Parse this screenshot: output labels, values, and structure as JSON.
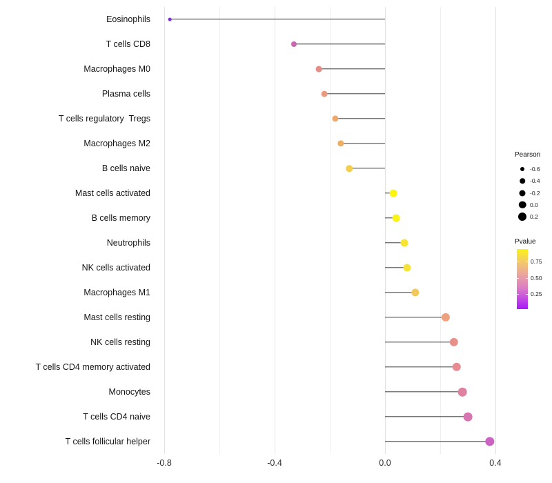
{
  "chart_data": {
    "type": "scatter",
    "variant": "lollipop",
    "title": "",
    "xlabel": "",
    "ylabel": "",
    "grid": "vertical-only",
    "xlim": [
      -0.825,
      0.43
    ],
    "x_ticks": {
      "labels": [
        "-0.8",
        "-0.4",
        "0.0",
        "0.4"
      ],
      "values": [
        -0.8,
        -0.4,
        0.0,
        0.4
      ]
    },
    "x_minor_gridlines": [
      -0.6,
      -0.2,
      0.2
    ],
    "baseline_x": 0.0,
    "points": [
      {
        "label": "Eosinophils",
        "pearson": -0.78,
        "color": "#7E2FD1"
      },
      {
        "label": "T cells CD8",
        "pearson": -0.33,
        "color": "#C767B2"
      },
      {
        "label": "Macrophages M0",
        "pearson": -0.24,
        "color": "#E28E84"
      },
      {
        "label": "Plasma cells",
        "pearson": -0.22,
        "color": "#EA9A7F"
      },
      {
        "label": "T cells regulatory  Tregs",
        "pearson": -0.18,
        "color": "#EDAA6F"
      },
      {
        "label": "Macrophages M2",
        "pearson": -0.16,
        "color": "#EFAE62"
      },
      {
        "label": "B cells naive",
        "pearson": -0.13,
        "color": "#F3CF51"
      },
      {
        "label": "Mast cells activated",
        "pearson": 0.03,
        "color": "#FAF60D"
      },
      {
        "label": "B cells memory",
        "pearson": 0.04,
        "color": "#FAF318"
      },
      {
        "label": "Neutrophils",
        "pearson": 0.07,
        "color": "#F8E531"
      },
      {
        "label": "NK cells activated",
        "pearson": 0.08,
        "color": "#F7E337"
      },
      {
        "label": "Macrophages M1",
        "pearson": 0.11,
        "color": "#F0C95A"
      },
      {
        "label": "Mast cells resting",
        "pearson": 0.22,
        "color": "#EDA17E"
      },
      {
        "label": "NK cells resting",
        "pearson": 0.25,
        "color": "#E79089"
      },
      {
        "label": "T cells CD4 memory activated",
        "pearson": 0.26,
        "color": "#E58B91"
      },
      {
        "label": "Monocytes",
        "pearson": 0.28,
        "color": "#DF82A2"
      },
      {
        "label": "T cells CD4 naive",
        "pearson": 0.3,
        "color": "#D675AF"
      },
      {
        "label": "T cells follicular helper",
        "pearson": 0.38,
        "color": "#CB63C4"
      }
    ],
    "legend": {
      "position": "right",
      "size_legend": {
        "title": "Pearson",
        "entries": [
          {
            "label": "-0.6",
            "value": -0.6
          },
          {
            "label": "-0.4",
            "value": -0.4
          },
          {
            "label": "-0.2",
            "value": -0.2
          },
          {
            "label": "0.0",
            "value": 0.0
          },
          {
            "label": "0.2",
            "value": 0.2
          }
        ],
        "dot_color": "#000000"
      },
      "color_legend": {
        "title": "Pvalue",
        "tick_labels": [
          "0.75",
          "0.50",
          "0.25"
        ],
        "tick_values": [
          0.75,
          0.5,
          0.25
        ],
        "range": [
          0.94,
          0.02
        ],
        "gradient_stops": [
          {
            "color": "#FBF214",
            "pos": 0
          },
          {
            "color": "#F3C96C",
            "pos": 22
          },
          {
            "color": "#E8A0A4",
            "pos": 45
          },
          {
            "color": "#DC7CC6",
            "pos": 65
          },
          {
            "color": "#BE43E6",
            "pos": 85
          },
          {
            "color": "#A818F8",
            "pos": 100
          }
        ]
      }
    },
    "colors": {
      "stem": "#3c3c3c",
      "axis_text": "#2e2e2e",
      "label_text": "#141414"
    }
  }
}
